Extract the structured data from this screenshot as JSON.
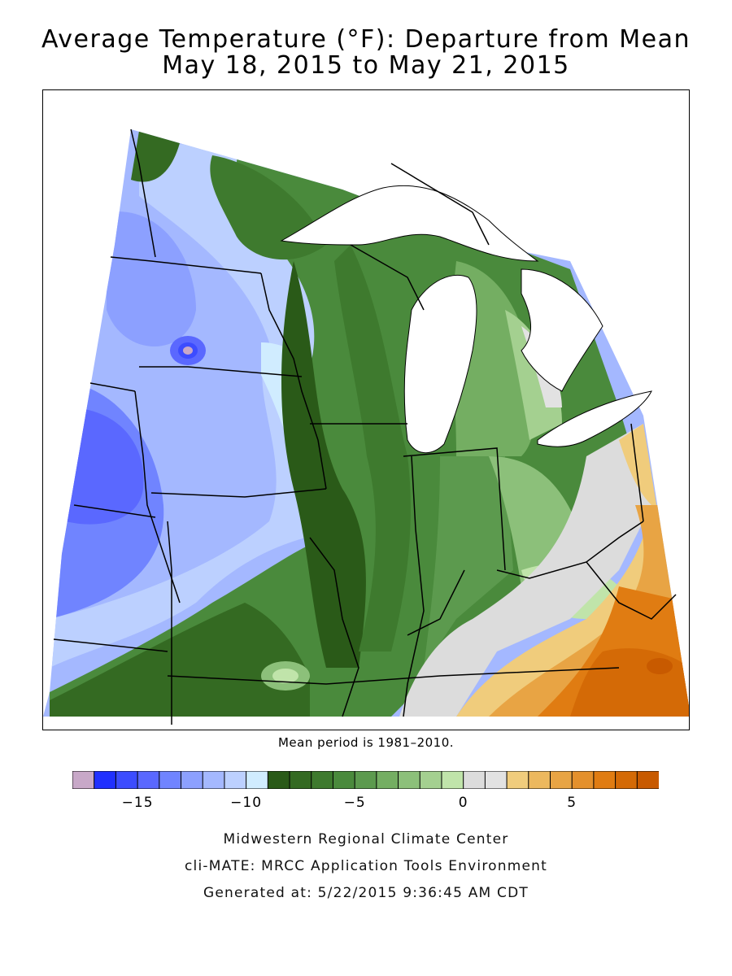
{
  "header": {
    "title_line1": "Average Temperature (°F): Departure from Mean",
    "title_line2": "May 18, 2015 to May 21, 2015"
  },
  "map": {
    "note": "Mean period is 1981–2010."
  },
  "legend": {
    "colors": [
      "#c8a8c8",
      "#2030ff",
      "#3c4cff",
      "#5a68ff",
      "#7084ff",
      "#8ca0ff",
      "#a4b8ff",
      "#bcd0ff",
      "#d0ecff",
      "#2a5a18",
      "#346a22",
      "#3e7a2e",
      "#4a8a3c",
      "#5c9a4e",
      "#74ae62",
      "#8cc07a",
      "#a4d090",
      "#c0e4aa",
      "#dcdcdc",
      "#e2e2e2",
      "#f0cc7c",
      "#ecb85e",
      "#e8a444",
      "#e4902c",
      "#e07c12",
      "#d46a06",
      "#c85a00"
    ],
    "ticks": [
      {
        "label": "−15",
        "value": -15
      },
      {
        "label": "−10",
        "value": -10
      },
      {
        "label": "−5",
        "value": -5
      },
      {
        "label": "0",
        "value": 0
      },
      {
        "label": "5",
        "value": 5
      }
    ]
  },
  "footer": {
    "line1": "Midwestern Regional Climate Center",
    "line2": "cli-MATE: MRCC Application Tools Environment",
    "line3": "Generated at: 5/22/2015 9:36:45 AM CDT"
  }
}
